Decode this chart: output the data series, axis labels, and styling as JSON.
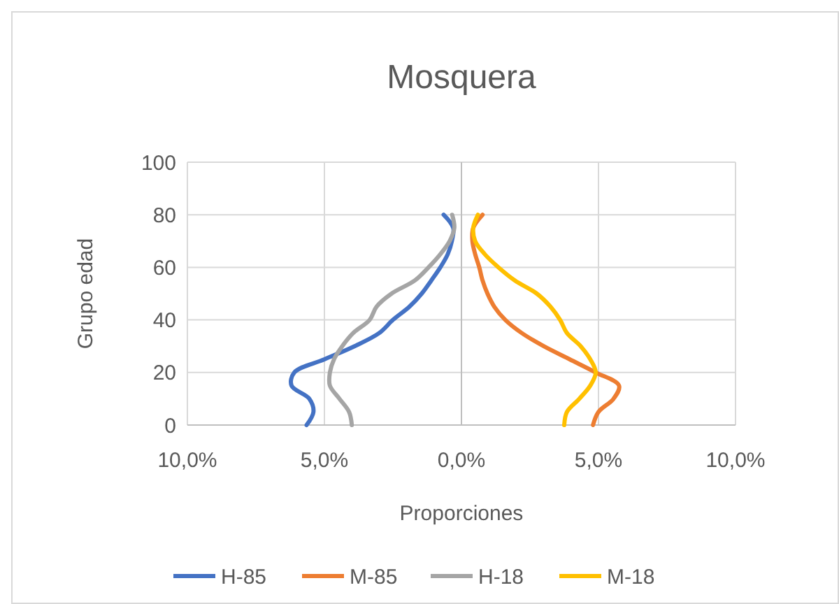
{
  "chart_data": {
    "type": "line",
    "title": "Mosquera",
    "xlabel": "Proporciones",
    "ylabel": "Grupo edad",
    "xlim": [
      -10,
      10
    ],
    "xticks": [
      {
        "value": -10,
        "label": "10,0%"
      },
      {
        "value": -5,
        "label": "5,0%"
      },
      {
        "value": 0,
        "label": "0,0%"
      },
      {
        "value": 5,
        "label": "5,0%"
      },
      {
        "value": 10,
        "label": "10,0%"
      }
    ],
    "ylim": [
      0,
      100
    ],
    "yticks": [
      0,
      20,
      40,
      60,
      80,
      100
    ],
    "grid": true,
    "legend": "bottom",
    "marker": "none",
    "line_style": "solid",
    "series": [
      {
        "name": "H-85",
        "color": "#4472c4",
        "x": [
          -5.65,
          -5.4,
          -5.55,
          -6.2,
          -6.1,
          -5.0,
          -3.9,
          -3.0,
          -2.5,
          -1.9,
          -1.45,
          -1.1,
          -0.77,
          -0.5,
          -0.35,
          -0.3,
          -0.65
        ],
        "values": [
          0,
          5,
          10,
          15,
          20,
          25,
          30,
          35,
          40,
          45,
          50,
          55,
          60,
          65,
          70,
          75,
          80
        ]
      },
      {
        "name": "M-85",
        "color": "#ed7d31",
        "x": [
          4.8,
          5.0,
          5.55,
          5.75,
          4.9,
          3.95,
          3.0,
          2.2,
          1.6,
          1.2,
          0.95,
          0.77,
          0.65,
          0.5,
          0.4,
          0.43,
          0.77
        ],
        "values": [
          0,
          5,
          10,
          15,
          20,
          25,
          30,
          35,
          40,
          45,
          50,
          55,
          60,
          65,
          70,
          75,
          80
        ]
      },
      {
        "name": "H-18",
        "color": "#a5a5a5",
        "x": [
          -4.0,
          -4.1,
          -4.45,
          -4.8,
          -4.8,
          -4.65,
          -4.35,
          -3.95,
          -3.35,
          -3.1,
          -2.55,
          -1.7,
          -1.2,
          -0.77,
          -0.43,
          -0.26,
          -0.34
        ],
        "values": [
          0,
          5,
          10,
          15,
          20,
          25,
          30,
          35,
          40,
          45,
          50,
          55,
          60,
          65,
          70,
          75,
          80
        ]
      },
      {
        "name": "M-18",
        "color": "#ffc000",
        "x": [
          3.75,
          3.85,
          4.3,
          4.7,
          4.9,
          4.7,
          4.35,
          3.85,
          3.6,
          3.25,
          2.75,
          1.95,
          1.35,
          0.85,
          0.5,
          0.43,
          0.6
        ],
        "values": [
          0,
          5,
          10,
          15,
          20,
          25,
          30,
          35,
          40,
          45,
          50,
          55,
          60,
          65,
          70,
          75,
          80
        ]
      }
    ]
  }
}
